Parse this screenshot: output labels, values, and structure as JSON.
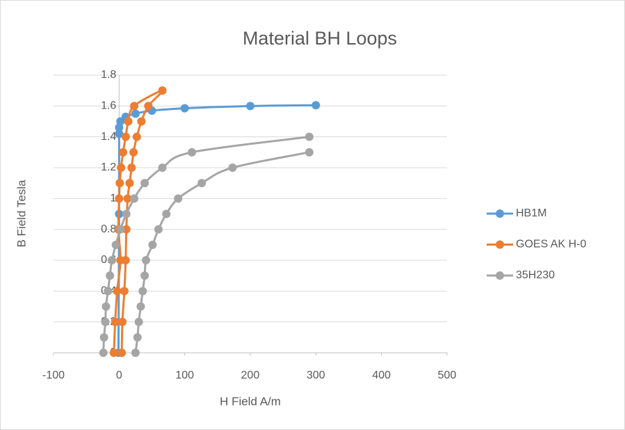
{
  "chart_data": {
    "type": "scatter",
    "title": "Material BH Loops",
    "xlabel": "H Field  A/m",
    "ylabel": "B Field  Tesla",
    "xlim": [
      -100,
      500
    ],
    "xticks": [
      -100,
      0,
      100,
      200,
      300,
      400,
      500
    ],
    "ylim": [
      0,
      1.8
    ],
    "yticks": [
      0,
      0.2,
      0.4,
      0.6,
      0.8,
      1,
      1.2,
      1.4,
      1.6,
      1.8
    ],
    "grid": true,
    "legend": "right",
    "series": [
      {
        "name": "HB1M",
        "color": "#5b9bd5",
        "x": [
          -1,
          0,
          0,
          0,
          2,
          10,
          25,
          50,
          100,
          200,
          300
        ],
        "y": [
          0,
          0.9,
          1.42,
          1.46,
          1.5,
          1.53,
          1.55,
          1.57,
          1.585,
          1.6,
          1.605
        ]
      },
      {
        "name": "GOES AK H-0",
        "color": "#ed7d31",
        "x": [
          -8,
          -6,
          -3,
          2,
          -1,
          0,
          1,
          3,
          6,
          10,
          14,
          23,
          66,
          44.5,
          34,
          27,
          22,
          19,
          16,
          13,
          11,
          10,
          8,
          5,
          4
        ],
        "y": [
          0,
          0.2,
          0.4,
          0.6,
          0.8,
          1.0,
          1.1,
          1.2,
          1.3,
          1.4,
          1.5,
          1.6,
          1.7,
          1.6,
          1.5,
          1.4,
          1.3,
          1.2,
          1.1,
          1.0,
          0.8,
          0.6,
          0.4,
          0.2,
          0
        ]
      },
      {
        "name": "35H230",
        "color": "#a5a5a5",
        "x": [
          -24,
          -23,
          -21,
          -20,
          -17,
          -14,
          -11,
          -5,
          2,
          11,
          23,
          39,
          66,
          111,
          290,
          null,
          290,
          173,
          126,
          90,
          72,
          60,
          51,
          41,
          39,
          36,
          33,
          30,
          28,
          25
        ],
        "y": [
          0,
          0.1,
          0.2,
          0.3,
          0.4,
          0.5,
          0.6,
          0.7,
          0.8,
          0.9,
          1.0,
          1.1,
          1.2,
          1.3,
          1.4,
          null,
          1.3,
          1.2,
          1.1,
          1.0,
          0.9,
          0.8,
          0.7,
          0.6,
          0.5,
          0.4,
          0.3,
          0.2,
          0.1,
          0
        ]
      }
    ]
  }
}
